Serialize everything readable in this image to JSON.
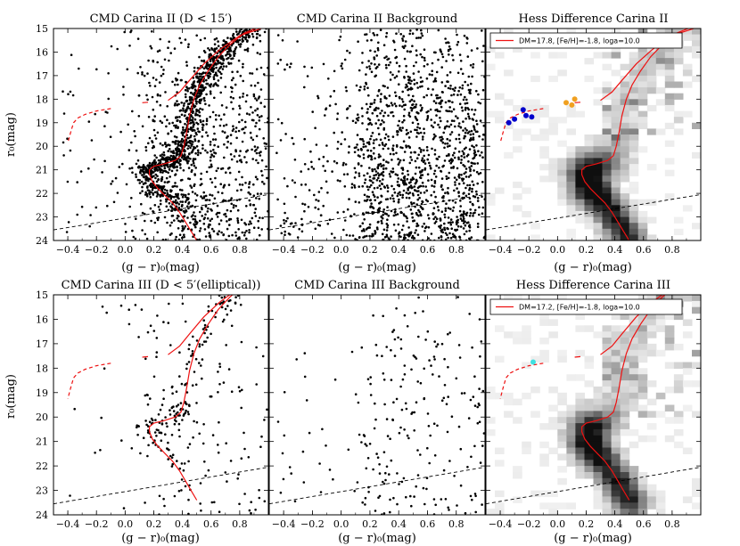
{
  "figure": {
    "xlabel": "(g − r)₀(mag)",
    "ylabel": "r₀(mag)"
  },
  "chart_data": [
    {
      "id": "p1",
      "type": "scatter",
      "title": "CMD Carina II (D < 15′)",
      "density": "high",
      "n_points": 1800,
      "xlim": [
        -0.5,
        1.0
      ],
      "ylim": [
        24,
        15
      ],
      "xticks": [
        -0.4,
        -0.2,
        0.0,
        0.2,
        0.4,
        0.6,
        0.8
      ],
      "yticks": [
        15,
        16,
        17,
        18,
        19,
        20,
        21,
        22,
        23,
        24
      ],
      "dist_mod": 17.8,
      "isochrone": true,
      "legend": null,
      "hb_points": []
    },
    {
      "id": "p2",
      "type": "scatter",
      "title": "CMD Carina II Background",
      "density": "high",
      "n_points": 1500,
      "xlim": [
        -0.5,
        1.0
      ],
      "ylim": [
        24,
        15
      ],
      "xticks": [
        -0.4,
        -0.2,
        0.0,
        0.2,
        0.4,
        0.6,
        0.8
      ],
      "yticks": [],
      "dist_mod": 17.8,
      "isochrone": false,
      "legend": null,
      "hb_points": []
    },
    {
      "id": "p3",
      "type": "heatmap",
      "title": "Hess Difference Carina II",
      "xlim": [
        -0.5,
        1.0
      ],
      "ylim": [
        24,
        15
      ],
      "xticks": [
        -0.4,
        -0.2,
        0.0,
        0.2,
        0.4,
        0.6,
        0.8
      ],
      "yticks": [],
      "dist_mod": 17.8,
      "isochrone": true,
      "legend": "DM=17.8, [Fe/H]=-1.8, loga=10.0",
      "hb_points": [
        {
          "x": -0.34,
          "y": 19.0,
          "color": "#0000cc"
        },
        {
          "x": -0.3,
          "y": 18.85,
          "color": "#0000cc"
        },
        {
          "x": -0.24,
          "y": 18.45,
          "color": "#0000cc"
        },
        {
          "x": -0.22,
          "y": 18.7,
          "color": "#0000cc"
        },
        {
          "x": -0.18,
          "y": 18.75,
          "color": "#0000cc"
        },
        {
          "x": 0.06,
          "y": 18.15,
          "color": "#f0a020"
        },
        {
          "x": 0.1,
          "y": 18.25,
          "color": "#f0a020"
        },
        {
          "x": 0.12,
          "y": 18.0,
          "color": "#f0a020"
        }
      ]
    },
    {
      "id": "p4",
      "type": "scatter",
      "title": "CMD Carina III (D < 5′(elliptical))",
      "density": "low",
      "n_points": 320,
      "xlim": [
        -0.5,
        1.0
      ],
      "ylim": [
        24,
        15
      ],
      "xticks": [
        -0.4,
        -0.2,
        0.0,
        0.2,
        0.4,
        0.6,
        0.8
      ],
      "yticks": [
        15,
        16,
        17,
        18,
        19,
        20,
        21,
        22,
        23,
        24
      ],
      "dist_mod": 17.2,
      "isochrone": true,
      "legend": null,
      "hb_points": []
    },
    {
      "id": "p5",
      "type": "scatter",
      "title": "CMD Carina III Background",
      "density": "low",
      "n_points": 240,
      "xlim": [
        -0.5,
        1.0
      ],
      "ylim": [
        24,
        15
      ],
      "xticks": [
        -0.4,
        -0.2,
        0.0,
        0.2,
        0.4,
        0.6,
        0.8
      ],
      "yticks": [],
      "dist_mod": 17.2,
      "isochrone": false,
      "legend": null,
      "hb_points": []
    },
    {
      "id": "p6",
      "type": "heatmap",
      "title": "Hess Difference Carina III",
      "xlim": [
        -0.5,
        1.0
      ],
      "ylim": [
        24,
        15
      ],
      "xticks": [
        -0.4,
        -0.2,
        0.0,
        0.2,
        0.4,
        0.6,
        0.8
      ],
      "yticks": [],
      "dist_mod": 17.2,
      "isochrone": true,
      "legend": "DM=17.2, [Fe/H]=-1.8, loga=10.0",
      "hb_points": [
        {
          "x": -0.17,
          "y": 17.75,
          "color": "#40e0e0"
        }
      ]
    }
  ],
  "colors": {
    "isochrone": "#ee1111",
    "points": "#000000",
    "limit_line": "#000000"
  }
}
